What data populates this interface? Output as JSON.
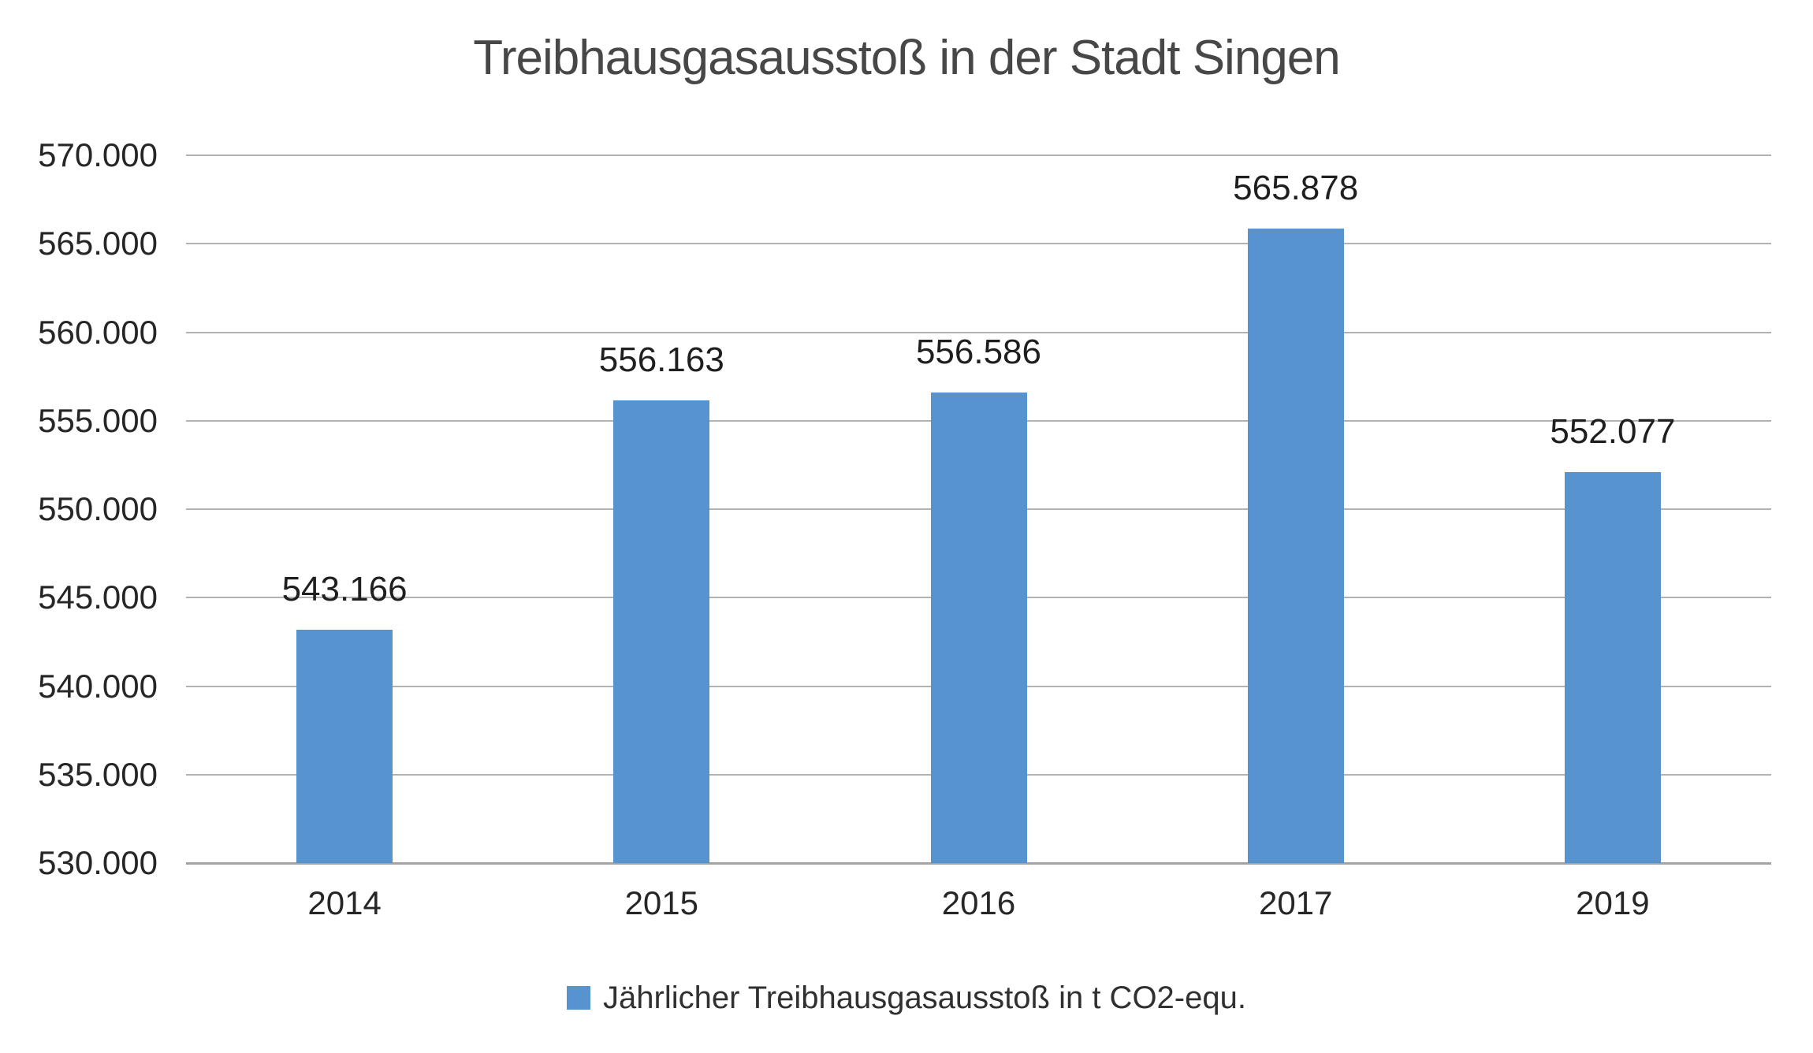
{
  "chart_data": {
    "type": "bar",
    "title": "Treibhausgasausstoß in der Stadt Singen",
    "categories": [
      "2014",
      "2015",
      "2016",
      "2017",
      "2019"
    ],
    "values": [
      543166,
      556163,
      556586,
      565878,
      552077
    ],
    "value_labels": [
      "543.166",
      "556.163",
      "556.586",
      "565.878",
      "552.077"
    ],
    "ylim": [
      530000,
      570000
    ],
    "ytick_step": 5000,
    "ytick_labels": [
      "570.000",
      "565.000",
      "560.000",
      "555.000",
      "550.000",
      "545.000",
      "540.000",
      "535.000",
      "530.000"
    ],
    "grid": "horizontal",
    "legend_position": "bottom",
    "legend": {
      "label": "Jährlicher Treibhausgasausstoß in t CO2-equ."
    },
    "colors": {
      "bar": "#5793CE",
      "gridline": "#b2b2b2",
      "axis_line": "#a3a3a3",
      "title_text": "#474747",
      "label_text": "#1f1f1f",
      "tick_text": "#262626"
    }
  }
}
